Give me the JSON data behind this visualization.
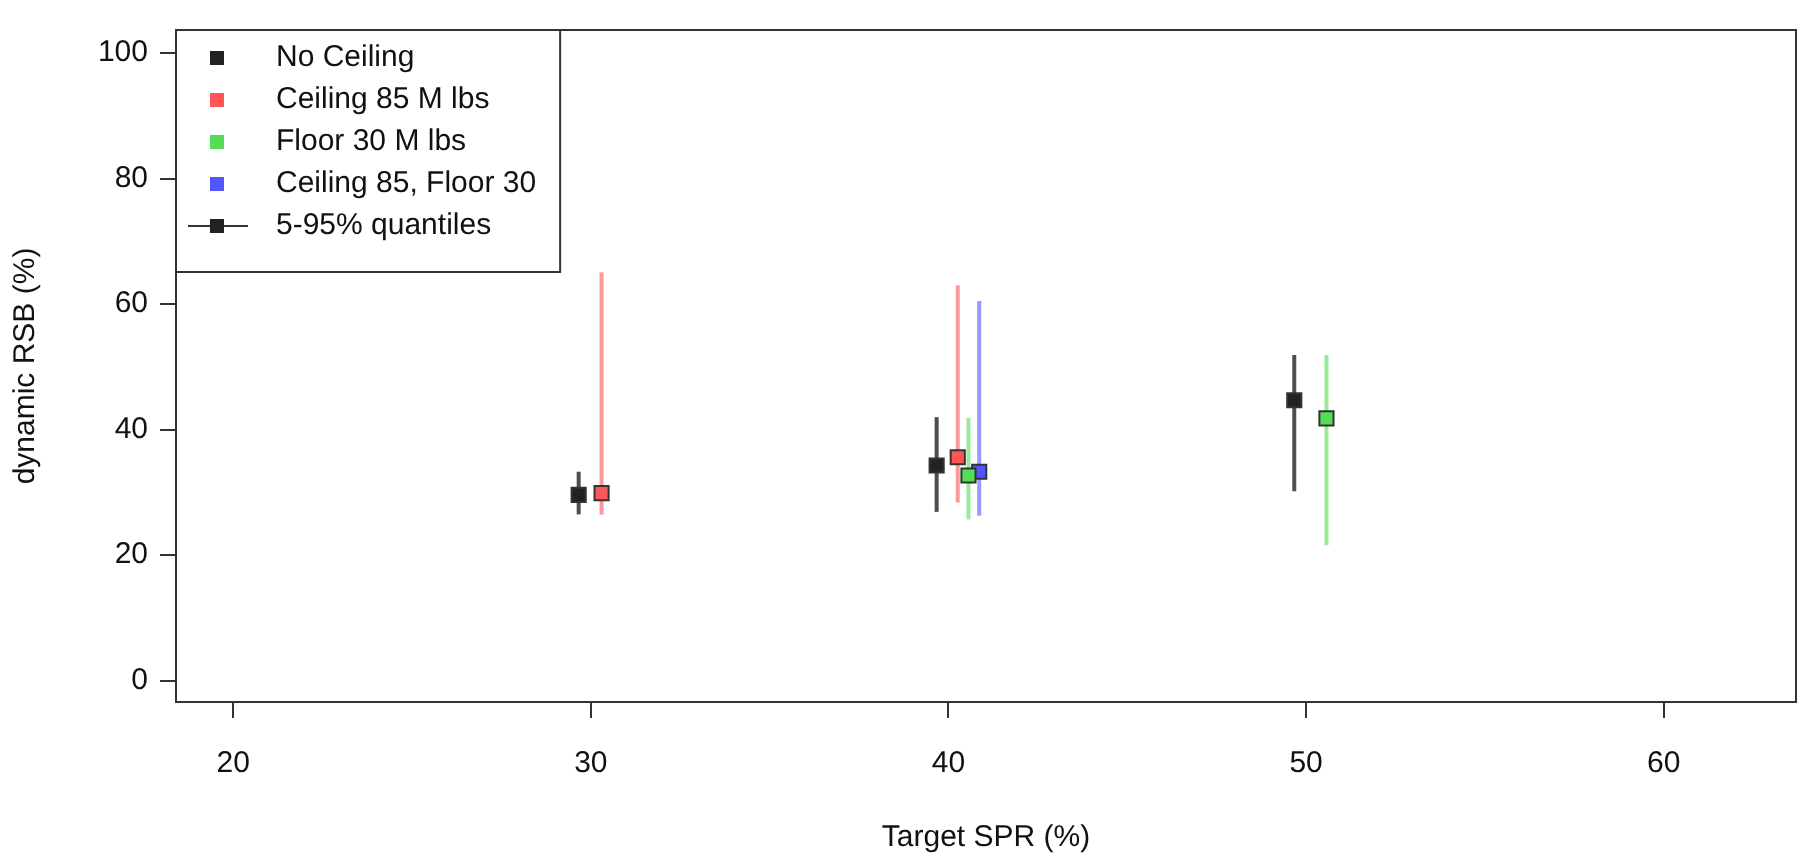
{
  "chart_data": {
    "type": "scatter",
    "xlabel": "Target SPR (%)",
    "ylabel": "dynamic RSB (%)",
    "xlim": [
      18.4,
      63.7
    ],
    "xticks": [
      20,
      30,
      40,
      50,
      60
    ],
    "ylim": [
      -3.4,
      103.7
    ],
    "yticks": [
      0,
      20,
      40,
      60,
      80,
      100
    ],
    "grid": false,
    "legend": "top left",
    "marker": "square",
    "annotations": [
      "5-95% quantiles"
    ],
    "series": [
      {
        "name": "No Ceiling",
        "color": "#222222",
        "x": [
          29.66,
          39.67,
          49.67
        ],
        "values": [
          29.6,
          34.3,
          44.7
        ],
        "errors": [
          [
            26.5,
            33.3
          ],
          [
            26.9,
            42.0
          ],
          [
            30.2,
            51.9
          ]
        ]
      },
      {
        "name": "Ceiling 85 M lbs",
        "color": "#ff5555",
        "x": [
          30.3,
          40.26
        ],
        "values": [
          29.9,
          35.6
        ],
        "errors": [
          [
            26.5,
            65.1
          ],
          [
            28.4,
            63.0
          ]
        ]
      },
      {
        "name": "Floor 30 M lbs",
        "color": "#55dd55",
        "x": [
          40.56,
          50.57
        ],
        "values": [
          32.7,
          41.8
        ],
        "errors": [
          [
            25.7,
            41.9
          ],
          [
            21.6,
            51.9
          ]
        ]
      },
      {
        "name": "Ceiling 85, Floor 30",
        "color": "#5555ff",
        "x": [
          40.86
        ],
        "values": [
          33.3
        ],
        "errors": [
          [
            26.3,
            60.5
          ]
        ]
      }
    ]
  }
}
